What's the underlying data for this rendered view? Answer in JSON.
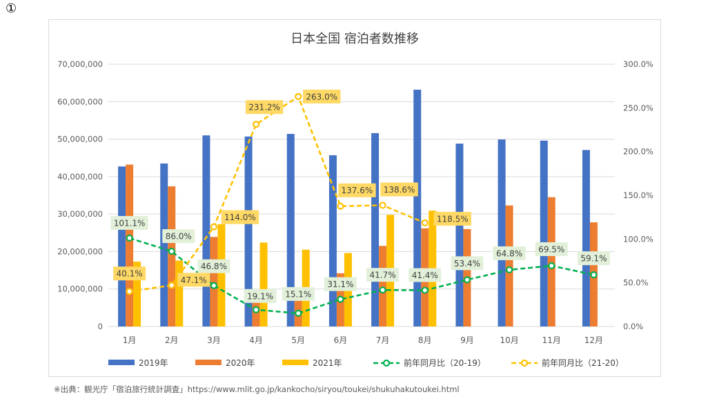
{
  "page": {
    "corner_number": "①",
    "source_note": "※出典：観光庁「宿泊旅行統計調査」https://www.mlit.go.jp/kankocho/siryou/toukei/shukuhakutoukei.html"
  },
  "chart_data": {
    "type": "bar",
    "title": "日本全国 宿泊者数推移",
    "categories": [
      "1月",
      "2月",
      "3月",
      "4月",
      "5月",
      "6月",
      "7月",
      "8月",
      "9月",
      "10月",
      "11月",
      "12月"
    ],
    "y_left": {
      "min": 0,
      "max": 70000000,
      "step": 10000000,
      "tick_labels": [
        "0",
        "10,000,000",
        "20,000,000",
        "30,000,000",
        "40,000,000",
        "50,000,000",
        "60,000,000",
        "70,000,000"
      ]
    },
    "y_right": {
      "min": 0,
      "max": 3.0,
      "step": 0.5,
      "tick_labels": [
        "0.0%",
        "50.0%",
        "100.0%",
        "150.0%",
        "200.0%",
        "250.0%",
        "300.0%"
      ]
    },
    "bar_series": [
      {
        "name": "2019年",
        "color": "#4472c4",
        "values": [
          42700000,
          43500000,
          51000000,
          50700000,
          51400000,
          45700000,
          51600000,
          63200000,
          48800000,
          49900000,
          49600000,
          47100000
        ]
      },
      {
        "name": "2020年",
        "color": "#ed7d31",
        "values": [
          43200000,
          37400000,
          23900000,
          9700000,
          7800000,
          14200000,
          21500000,
          26200000,
          26000000,
          32300000,
          34500000,
          27800000
        ]
      },
      {
        "name": "2021年",
        "color": "#ffc000",
        "values": [
          17300000,
          17600000,
          27300000,
          22400000,
          20500000,
          19600000,
          29800000,
          30900000,
          null,
          null,
          null,
          null
        ]
      }
    ],
    "line_series": [
      {
        "name": "前年同月比（20-19）",
        "color": "#00b050",
        "label_bg": "#e2f0d9",
        "values": [
          1.011,
          0.86,
          0.468,
          0.191,
          0.151,
          0.311,
          0.417,
          0.414,
          0.534,
          0.648,
          0.695,
          0.591
        ],
        "labels": [
          "101.1%",
          "86.0%",
          "46.8%",
          "19.1%",
          "15.1%",
          "31.1%",
          "41.7%",
          "41.4%",
          "53.4%",
          "64.8%",
          "69.5%",
          "59.1%"
        ]
      },
      {
        "name": "前年同月比（21-20）",
        "color": "#ffc000",
        "label_bg": "#ffd966",
        "values": [
          0.401,
          0.471,
          1.14,
          2.312,
          2.63,
          1.376,
          1.386,
          1.185,
          null,
          null,
          null,
          null
        ],
        "labels": [
          "40.1%",
          "47.1%",
          "114.0%",
          "231.2%",
          "263.0%",
          "137.6%",
          "138.6%",
          "118.5%",
          null,
          null,
          null,
          null
        ]
      }
    ],
    "legend_position": "bottom",
    "grid": true
  }
}
